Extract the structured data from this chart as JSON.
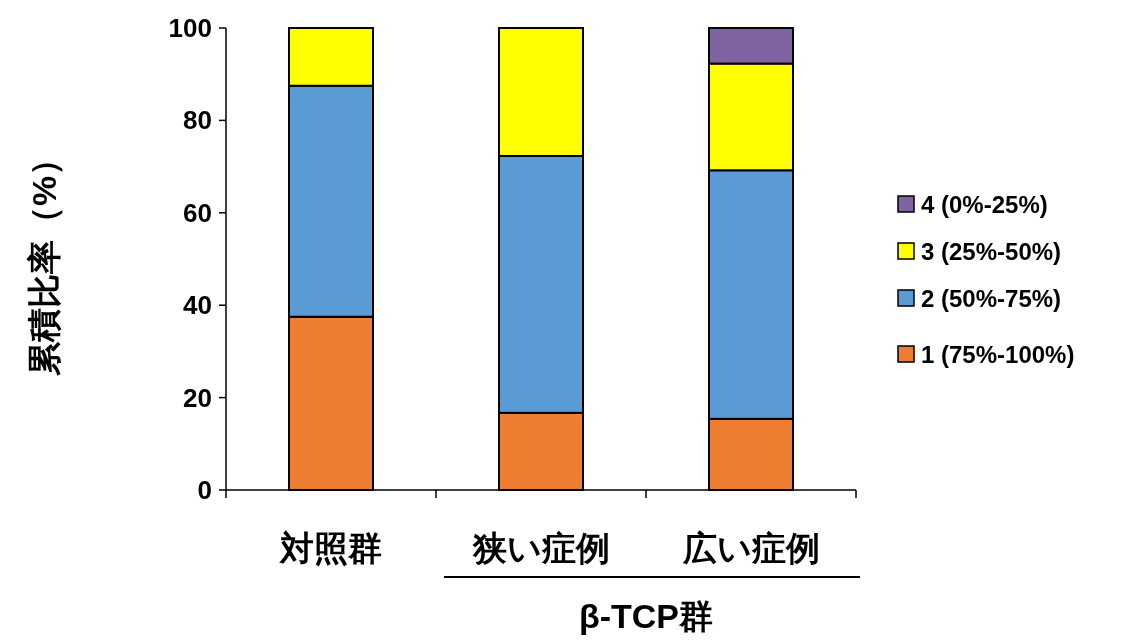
{
  "chart_data": {
    "type": "bar",
    "stacked": true,
    "ylabel": "累積比率（%）",
    "xlabel": "β-TCP群",
    "categories": [
      "対照群",
      "狭い症例",
      "広い症例"
    ],
    "series": [
      {
        "name": "1 (75%-100%)",
        "color": "#ed7d31",
        "values": [
          37.5,
          16.7,
          15.4
        ]
      },
      {
        "name": "2 (50%-75%)",
        "color": "#5b9bd5",
        "values": [
          50,
          55.6,
          53.8
        ]
      },
      {
        "name": "3 (25%-50%)",
        "color": "#ffff00",
        "values": [
          12.5,
          27.7,
          23.1
        ]
      },
      {
        "name": "4 (0%-25%)",
        "color": "#8064a2",
        "values": [
          0,
          0,
          7.7
        ]
      }
    ],
    "ylim": [
      0,
      100
    ],
    "yticks": [
      0,
      20,
      40,
      60,
      80,
      100
    ],
    "grid": false,
    "legend": "right"
  }
}
